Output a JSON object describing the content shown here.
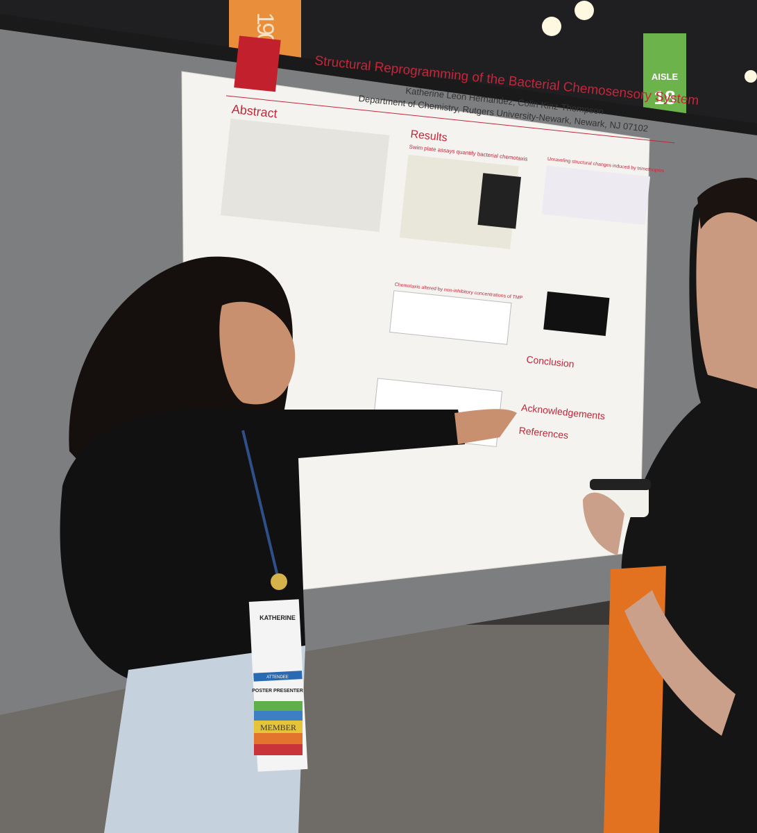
{
  "signs": [
    {
      "text": "190"
    },
    {
      "label": "AISLE",
      "number": "18"
    }
  ],
  "poster": {
    "title": "Structural Reprogramming of the Bacterial Chemosensory System",
    "authors": "Katherine Leon Hernandez, Colin Kinz-Thompson",
    "affiliation": "Department of Chemistry, Rutgers University-Newark, Newark, NJ 07102",
    "sections": [
      "Abstract",
      "Results",
      "Conclusion",
      "Acknowledgements",
      "References"
    ],
    "subheadings": [
      "Swim plate assays quantify bacterial chemotaxis",
      "Chemotaxis altered by non-inhibitory concentrations of TMP",
      "Unraveling structural changes induced by trimethoprim"
    ]
  },
  "badge": {
    "name": "KATHERINE",
    "role": "POSTER PRESENTER",
    "tag": "ATTENDEE",
    "ribbon": "MEMBER"
  }
}
